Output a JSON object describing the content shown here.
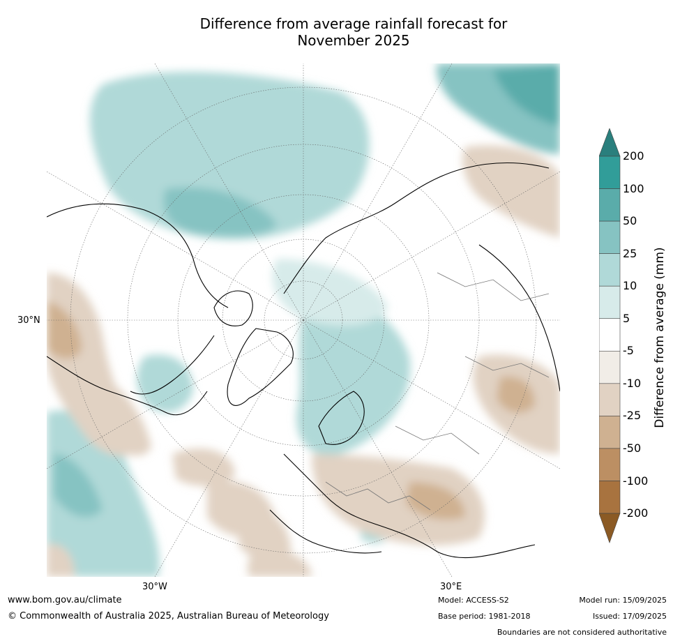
{
  "title_line1": "Difference from average rainfall forecast for",
  "title_line2": "November 2025",
  "lat_label": "30°N",
  "lon_labels": {
    "west": "30°W",
    "east": "30°E"
  },
  "colorbar": {
    "title": "Difference from average (mm)",
    "tick_labels": [
      "200",
      "100",
      "50",
      "25",
      "10",
      "5",
      "-5",
      "-10",
      "-25",
      "-50",
      "-100",
      "-200"
    ],
    "colors": {
      "over": "#2a7f7d",
      "bins": [
        "#319d99",
        "#5aacaa",
        "#86c3c2",
        "#b0d9d8",
        "#d7ebea",
        "#ffffff",
        "#f1ede7",
        "#e1d2c3",
        "#cfb191",
        "#bc8f63",
        "#a8733f"
      ],
      "under": "#8b5a24"
    }
  },
  "footer": {
    "website": "www.bom.gov.au/climate",
    "copyright": "© Commonwealth of Australia 2025, Australian Bureau of Meteorology",
    "model": "Model: ACCESS-S2",
    "base_period": "Base period: 1981-2018",
    "model_run": "Model run: 15/09/2025",
    "issued": "Issued: 17/09/2025",
    "disclaimer": "Boundaries are not considered authoritative"
  }
}
